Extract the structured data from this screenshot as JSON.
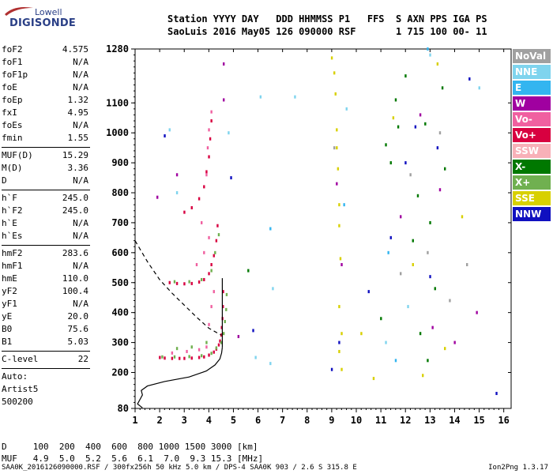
{
  "logo": {
    "line1": "Lowell",
    "line2": "DIGISONDE"
  },
  "header": {
    "row1": "Station YYYY DAY   DDD HHMMSS P1   FFS  S AXN PPS IGA PS",
    "row2": "SaoLuis 2016 May05 126 090000 RSF       1 715 100 00- 11"
  },
  "params": [
    {
      "k": "foF2",
      "v": "4.575"
    },
    {
      "k": "foF1",
      "v": "N/A"
    },
    {
      "k": "foF1p",
      "v": "N/A"
    },
    {
      "k": "foE",
      "v": "N/A"
    },
    {
      "k": "foEp",
      "v": "1.32"
    },
    {
      "k": "fxI",
      "v": "4.95"
    },
    {
      "k": "foEs",
      "v": "N/A"
    },
    {
      "k": "fmin",
      "v": "1.55"
    },
    {
      "k": "MUF(D)",
      "v": "15.29"
    },
    {
      "k": "M(D)",
      "v": "3.36"
    },
    {
      "k": "D",
      "v": "N/A"
    },
    {
      "k": "h`F",
      "v": "245.0"
    },
    {
      "k": "h`F2",
      "v": "245.0"
    },
    {
      "k": "h`E",
      "v": "N/A"
    },
    {
      "k": "h`Es",
      "v": "N/A"
    },
    {
      "k": "hmF2",
      "v": "283.6"
    },
    {
      "k": "hmF1",
      "v": "N/A"
    },
    {
      "k": "hmE",
      "v": "110.0"
    },
    {
      "k": "yF2",
      "v": "100.4"
    },
    {
      "k": "yF1",
      "v": "N/A"
    },
    {
      "k": "yE",
      "v": "20.0"
    },
    {
      "k": "B0",
      "v": "75.6"
    },
    {
      "k": "B1",
      "v": "5.03"
    },
    {
      "k": "C-level",
      "v": "22"
    }
  ],
  "auto": {
    "line1": "Auto:",
    "line2": "Artist5",
    "line3": "500200"
  },
  "legend": [
    {
      "label": "NoVal",
      "color": "#a0a0a0"
    },
    {
      "label": "NNE",
      "color": "#7fd4ee"
    },
    {
      "label": "E",
      "color": "#33b5f0"
    },
    {
      "label": "W",
      "color": "#a000a0"
    },
    {
      "label": "Vo-",
      "color": "#f060a0"
    },
    {
      "label": "Vo+",
      "color": "#d80040"
    },
    {
      "label": "SSW",
      "color": "#f8b0b8"
    },
    {
      "label": "X-",
      "color": "#007800"
    },
    {
      "label": "X+",
      "color": "#70b050"
    },
    {
      "label": "SSE",
      "color": "#d8d000"
    },
    {
      "label": "NNW",
      "color": "#1010c0"
    }
  ],
  "bottom": {
    "row1": "D     100  200  400  600  800 1000 1500 3000 [km]",
    "row2": "MUF   4.9  5.0  5.2  5.6  6.1  7.0  9.3 15.3 [MHz]"
  },
  "footer": "SAA0K_2016126090000.RSF / 300fx256h 50 kHz 5.0 km / DPS-4 SAA0K 903 / 2.6 S 315.8 E",
  "version": "Ion2Png 1.3.17",
  "chart_data": {
    "type": "scatter",
    "x_ticks": [
      1,
      2,
      3,
      4,
      5,
      6,
      7,
      8,
      9,
      10,
      11,
      12,
      13,
      14,
      15,
      16
    ],
    "y_ticks": [
      80,
      200,
      300,
      400,
      500,
      600,
      700,
      800,
      900,
      1000,
      1100,
      1280
    ],
    "xlim": [
      1,
      16.3
    ],
    "ylim": [
      80,
      1280
    ],
    "series": [
      {
        "color": "#d80040",
        "points": [
          [
            2.0,
            250
          ],
          [
            2.2,
            248
          ],
          [
            2.5,
            247
          ],
          [
            2.8,
            247
          ],
          [
            3.0,
            247
          ],
          [
            3.3,
            248
          ],
          [
            3.6,
            250
          ],
          [
            3.8,
            252
          ],
          [
            4.0,
            258
          ],
          [
            4.2,
            268
          ],
          [
            4.3,
            278
          ],
          [
            4.4,
            292
          ],
          [
            4.45,
            305
          ],
          [
            4.5,
            325
          ],
          [
            4.52,
            350
          ],
          [
            4.55,
            380
          ],
          [
            4.57,
            420
          ],
          [
            4.58,
            470
          ],
          [
            2.4,
            500
          ],
          [
            2.7,
            497
          ],
          [
            3.0,
            496
          ],
          [
            3.3,
            497
          ],
          [
            3.6,
            502
          ],
          [
            3.8,
            510
          ],
          [
            4.0,
            530
          ],
          [
            4.1,
            560
          ],
          [
            4.2,
            590
          ],
          [
            4.3,
            640
          ],
          [
            4.35,
            690
          ],
          [
            3.0,
            735
          ],
          [
            3.3,
            750
          ],
          [
            3.6,
            780
          ],
          [
            3.8,
            820
          ],
          [
            3.9,
            870
          ],
          [
            4.0,
            920
          ],
          [
            4.05,
            980
          ],
          [
            4.1,
            1040
          ]
        ]
      },
      {
        "color": "#70b050",
        "points": [
          [
            2.1,
            252
          ],
          [
            2.6,
            252
          ],
          [
            3.2,
            253
          ],
          [
            3.7,
            256
          ],
          [
            4.1,
            264
          ],
          [
            4.3,
            282
          ],
          [
            4.5,
            300
          ],
          [
            4.6,
            330
          ],
          [
            4.65,
            370
          ],
          [
            4.7,
            410
          ],
          [
            4.72,
            460
          ],
          [
            2.6,
            503
          ],
          [
            3.2,
            503
          ],
          [
            3.7,
            510
          ],
          [
            4.1,
            540
          ],
          [
            4.25,
            600
          ],
          [
            4.4,
            660
          ],
          [
            2.7,
            280
          ],
          [
            3.3,
            285
          ],
          [
            3.9,
            300
          ]
        ]
      },
      {
        "color": "#f060a0",
        "points": [
          [
            2.5,
            265
          ],
          [
            3.1,
            270
          ],
          [
            3.6,
            276
          ],
          [
            3.9,
            285
          ],
          [
            4.0,
            360
          ],
          [
            4.1,
            420
          ],
          [
            4.2,
            470
          ],
          [
            3.5,
            560
          ],
          [
            3.8,
            600
          ],
          [
            4.0,
            650
          ],
          [
            3.7,
            700
          ],
          [
            3.9,
            860
          ],
          [
            3.95,
            950
          ],
          [
            4.0,
            1010
          ],
          [
            4.1,
            1070
          ]
        ]
      },
      {
        "color": "#a000a0",
        "points": [
          [
            1.9,
            785
          ],
          [
            2.7,
            860
          ],
          [
            4.6,
            1230
          ],
          [
            4.6,
            1110
          ],
          [
            5.2,
            320
          ],
          [
            9.2,
            830
          ],
          [
            9.4,
            560
          ],
          [
            11.8,
            720
          ],
          [
            12.6,
            1060
          ],
          [
            13.1,
            350
          ],
          [
            13.4,
            810
          ],
          [
            14.0,
            300
          ],
          [
            14.9,
            400
          ]
        ]
      },
      {
        "color": "#1010c0",
        "points": [
          [
            2.2,
            990
          ],
          [
            4.9,
            850
          ],
          [
            5.8,
            340
          ],
          [
            9.0,
            210
          ],
          [
            9.3,
            300
          ],
          [
            10.5,
            470
          ],
          [
            11.4,
            650
          ],
          [
            12.0,
            900
          ],
          [
            12.4,
            1020
          ],
          [
            13.0,
            520
          ],
          [
            13.3,
            950
          ],
          [
            14.6,
            1180
          ],
          [
            15.7,
            130
          ]
        ]
      },
      {
        "color": "#007800",
        "points": [
          [
            5.6,
            540
          ],
          [
            11.2,
            960
          ],
          [
            11.4,
            900
          ],
          [
            11.6,
            1110
          ],
          [
            11.7,
            1020
          ],
          [
            12.0,
            1190
          ],
          [
            12.3,
            640
          ],
          [
            12.5,
            790
          ],
          [
            12.6,
            330
          ],
          [
            12.8,
            1030
          ],
          [
            13.0,
            700
          ],
          [
            13.2,
            480
          ],
          [
            13.5,
            1150
          ],
          [
            13.6,
            880
          ],
          [
            11.0,
            380
          ],
          [
            12.9,
            240
          ]
        ]
      },
      {
        "color": "#d8d000",
        "points": [
          [
            9.0,
            1250
          ],
          [
            9.1,
            1200
          ],
          [
            9.15,
            1130
          ],
          [
            9.2,
            1010
          ],
          [
            9.2,
            950
          ],
          [
            9.25,
            880
          ],
          [
            9.3,
            760
          ],
          [
            9.3,
            690
          ],
          [
            9.35,
            580
          ],
          [
            9.3,
            420
          ],
          [
            9.4,
            330
          ],
          [
            9.3,
            270
          ],
          [
            9.4,
            210
          ],
          [
            10.2,
            330
          ],
          [
            10.7,
            180
          ],
          [
            11.5,
            1050
          ],
          [
            12.3,
            560
          ],
          [
            12.7,
            190
          ],
          [
            13.3,
            1230
          ],
          [
            13.6,
            280
          ],
          [
            14.3,
            720
          ]
        ]
      },
      {
        "color": "#7fd4ee",
        "points": [
          [
            2.4,
            1010
          ],
          [
            2.7,
            800
          ],
          [
            4.8,
            1000
          ],
          [
            5.9,
            250
          ],
          [
            6.1,
            1120
          ],
          [
            6.5,
            230
          ],
          [
            6.6,
            480
          ],
          [
            7.5,
            1120
          ],
          [
            9.6,
            1080
          ],
          [
            11.2,
            300
          ],
          [
            12.1,
            420
          ],
          [
            13.0,
            1260
          ],
          [
            15.0,
            1150
          ]
        ]
      },
      {
        "color": "#a0a0a0",
        "points": [
          [
            9.1,
            950
          ],
          [
            11.8,
            530
          ],
          [
            12.2,
            860
          ],
          [
            12.9,
            600
          ],
          [
            13.4,
            1000
          ],
          [
            13.8,
            440
          ],
          [
            14.5,
            560
          ]
        ]
      },
      {
        "color": "#33b5f0",
        "points": [
          [
            6.5,
            680
          ],
          [
            9.5,
            760
          ],
          [
            11.3,
            600
          ],
          [
            11.6,
            240
          ],
          [
            12.9,
            1280
          ]
        ]
      }
    ],
    "lines": [
      {
        "style": "solid",
        "points": [
          [
            1.3,
            82
          ],
          [
            1.1,
            95
          ],
          [
            1.2,
            110
          ],
          [
            1.3,
            125
          ],
          [
            1.25,
            140
          ],
          [
            1.5,
            155
          ],
          [
            2.2,
            170
          ],
          [
            3.2,
            185
          ],
          [
            3.9,
            205
          ],
          [
            4.25,
            225
          ],
          [
            4.45,
            245
          ],
          [
            4.52,
            265
          ],
          [
            4.55,
            283.6
          ]
        ]
      },
      {
        "style": "dashed",
        "points": [
          [
            1.0,
            640
          ],
          [
            1.5,
            570
          ],
          [
            2.0,
            510
          ],
          [
            2.5,
            465
          ],
          [
            3.0,
            425
          ],
          [
            3.5,
            385
          ],
          [
            4.0,
            348
          ],
          [
            4.5,
            325
          ]
        ]
      },
      {
        "style": "solid",
        "points": [
          [
            4.55,
            283.6
          ],
          [
            4.55,
            330
          ],
          [
            4.55,
            420
          ],
          [
            4.55,
            515
          ]
        ]
      }
    ]
  }
}
